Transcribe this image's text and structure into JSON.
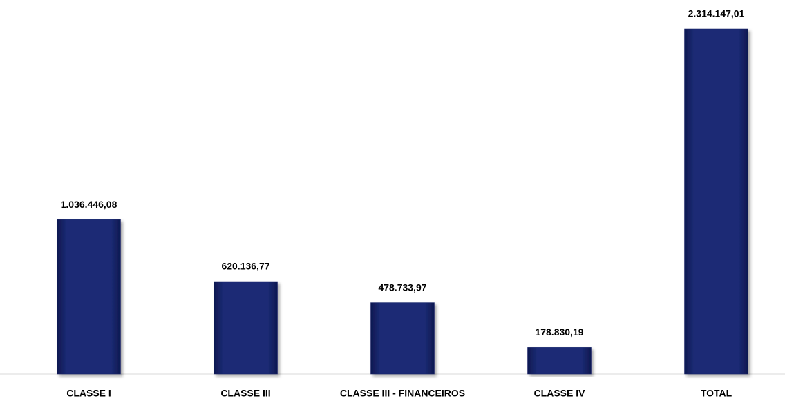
{
  "chart_data": {
    "type": "bar",
    "categories": [
      "CLASSE I",
      "CLASSE III",
      "CLASSE III - FINANCEIROS",
      "CLASSE IV",
      "TOTAL"
    ],
    "values": [
      1036446.08,
      620136.77,
      478733.97,
      178830.19,
      2314147.01
    ],
    "value_labels": [
      "1.036.446,08",
      "620.136,77",
      "478.733,97",
      "178.830,19",
      "2.314.147,01"
    ],
    "color": "#17256a"
  }
}
